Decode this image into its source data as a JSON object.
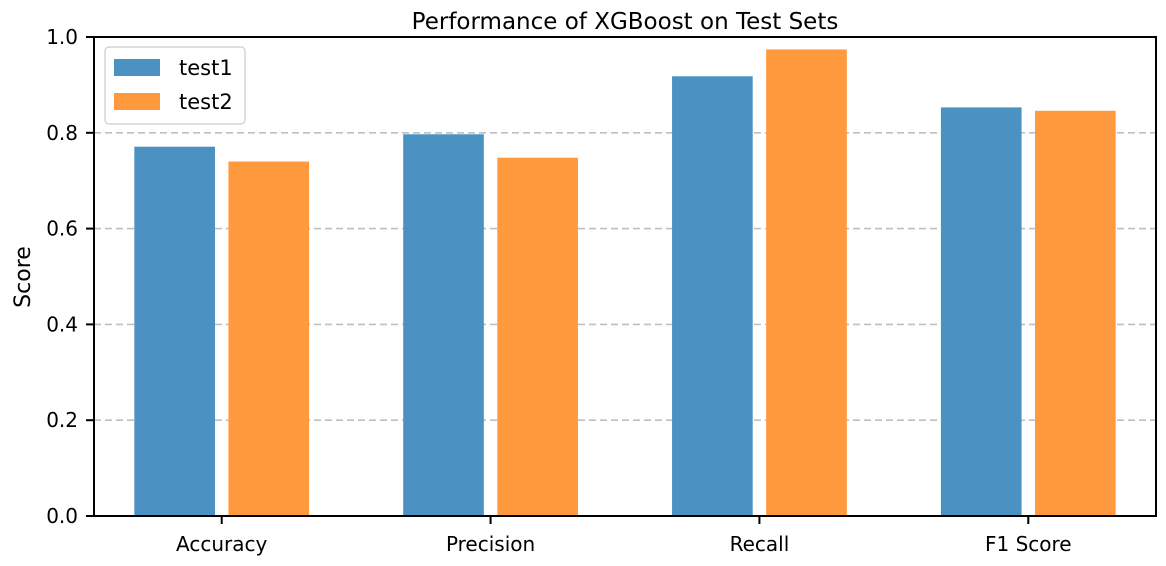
{
  "chart_data": {
    "type": "bar",
    "title": "Performance of XGBoost on Test Sets",
    "xlabel": "",
    "ylabel": "Score",
    "ylim": [
      0,
      1.0
    ],
    "yticks": [
      "0.0",
      "0.2",
      "0.4",
      "0.6",
      "0.8",
      "1.0"
    ],
    "categories": [
      "Accuracy",
      "Precision",
      "Recall",
      "F1 Score"
    ],
    "series": [
      {
        "name": "test1",
        "color": "#4b92c3",
        "values": [
          0.771,
          0.797,
          0.918,
          0.853
        ]
      },
      {
        "name": "test2",
        "color": "#ff993e",
        "values": [
          0.74,
          0.748,
          0.974,
          0.846
        ]
      }
    ],
    "grid": {
      "axis": "y",
      "style": "dashed",
      "color": "#bfbfbf"
    },
    "legend": {
      "position": "top-left"
    }
  }
}
